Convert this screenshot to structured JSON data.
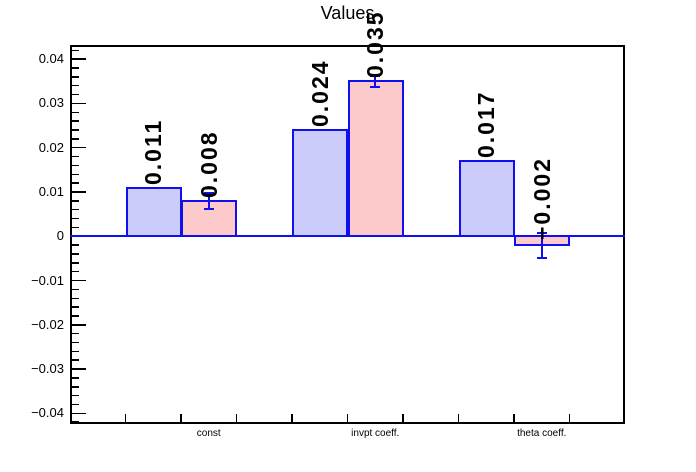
{
  "chart_data": {
    "type": "bar",
    "title": "Values",
    "categories": [
      "const",
      "invpt coeff.",
      "theta coeff."
    ],
    "series": [
      {
        "name": "blue-series",
        "fill": "#ccccfa",
        "bins": [
          1,
          4,
          7
        ],
        "values": [
          0.011,
          0.024,
          0.017
        ],
        "labels": [
          "0.011",
          "0.024",
          "0.017"
        ],
        "errors": [
          0,
          0,
          0
        ]
      },
      {
        "name": "pink-series",
        "fill": "#fccaca",
        "bins": [
          2,
          5,
          8
        ],
        "values": [
          0.008,
          0.035,
          -0.002
        ],
        "labels": [
          "0.008",
          "0.035",
          "−0.002"
        ],
        "errors": [
          0.0018,
          0.0012,
          0.0028
        ]
      }
    ],
    "label_bins": [
      2,
      5,
      8
    ],
    "x_bins": 10,
    "ylim": [
      -0.0424,
      0.0432
    ],
    "yticks": [
      {
        "v": 0.04,
        "label": "0.04"
      },
      {
        "v": 0.03,
        "label": "0.03"
      },
      {
        "v": 0.02,
        "label": "0.02"
      },
      {
        "v": 0.01,
        "label": "0.01"
      },
      {
        "v": 0.0,
        "label": "0"
      },
      {
        "v": -0.01,
        "label": "−0.01"
      },
      {
        "v": -0.02,
        "label": "−0.02"
      },
      {
        "v": -0.03,
        "label": "−0.03"
      },
      {
        "v": -0.04,
        "label": "−0.04"
      }
    ],
    "ytick_minor_step": 0.002,
    "colors": {
      "line": "#0f0ff0",
      "frame": "#000000",
      "text": "#000000"
    },
    "grid": false,
    "legend": null,
    "xlabel": "",
    "ylabel": ""
  }
}
